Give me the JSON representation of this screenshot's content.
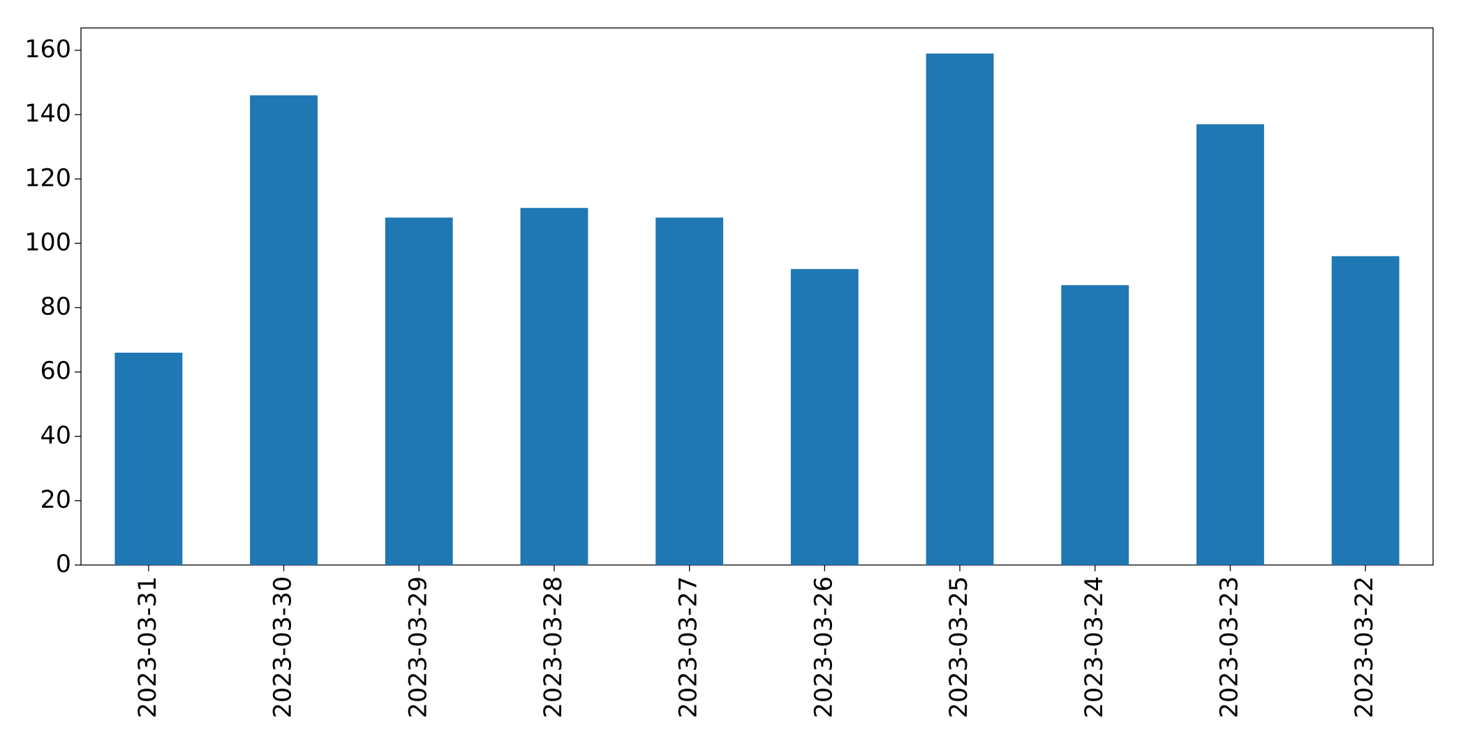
{
  "chart_data": {
    "type": "bar",
    "categories": [
      "2023-03-31",
      "2023-03-30",
      "2023-03-29",
      "2023-03-28",
      "2023-03-27",
      "2023-03-26",
      "2023-03-25",
      "2023-03-24",
      "2023-03-23",
      "2023-03-22"
    ],
    "values": [
      66,
      146,
      108,
      111,
      108,
      92,
      159,
      87,
      137,
      96
    ],
    "color": "#1f77b4",
    "ylim": [
      0,
      166.95
    ],
    "yticks": [
      0,
      20,
      40,
      60,
      80,
      100,
      120,
      140,
      160
    ],
    "grid": false
  }
}
